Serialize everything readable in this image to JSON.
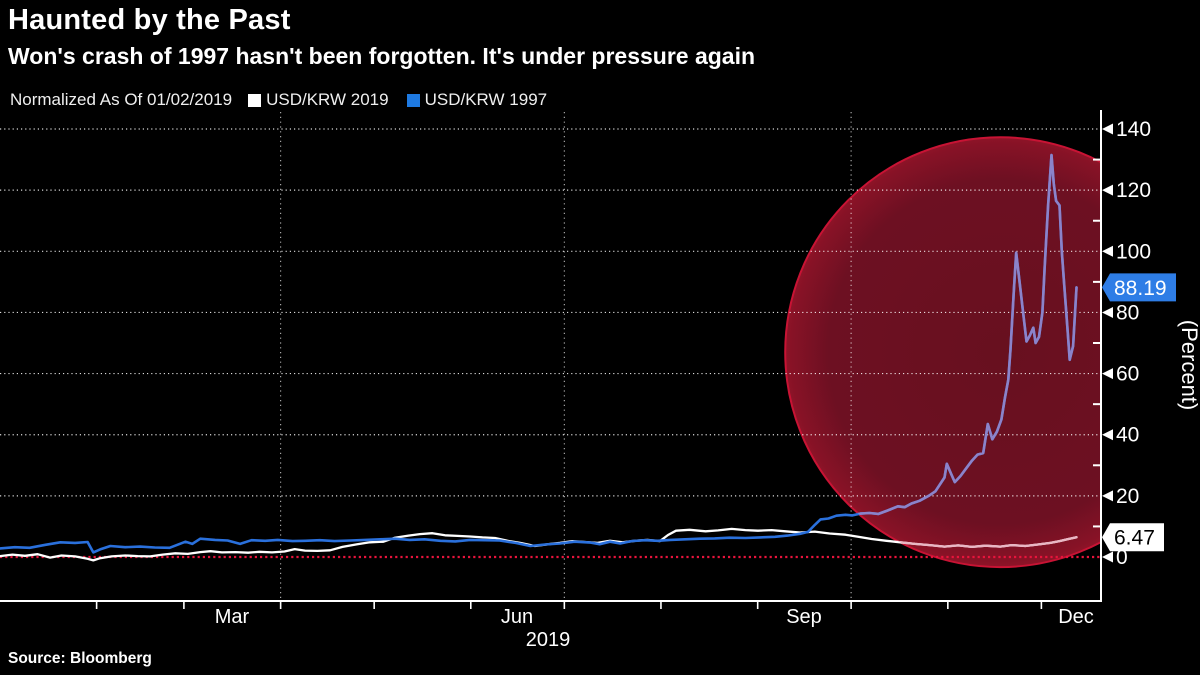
{
  "header": {
    "title": "Haunted by the Past",
    "subtitle": "Won's crash of 1997 hasn't been forgotten. It's under pressure again"
  },
  "legend": {
    "note": "Normalized As Of 01/02/2019",
    "series": [
      {
        "label": "USD/KRW 2019",
        "color": "#FFFFFF"
      },
      {
        "label": "USD/KRW 1997",
        "color": "#1E7AE2"
      }
    ]
  },
  "source": "Source: Bloomberg",
  "badges": [
    {
      "series": "USD/KRW 1997",
      "value": "88.19",
      "bg": "#2E7DE6",
      "fg": "#FFFFFF"
    },
    {
      "series": "USD/KRW 2019",
      "value": "6.47",
      "bg": "#FFFFFF",
      "fg": "#000000"
    }
  ],
  "chart_data": {
    "type": "line",
    "title": "Haunted by the Past",
    "x_axis": {
      "labels": [
        "Mar",
        "Jun",
        "Sep",
        "Dec"
      ],
      "year_label": "2019",
      "range": "Jan 2019 to mid-Dec 2019"
    },
    "y_axis": {
      "title": "(Percent)",
      "ticks": [
        0,
        20,
        40,
        60,
        80,
        100,
        120,
        140
      ],
      "minor_ticks": [
        10,
        30,
        50,
        70,
        90,
        110,
        130
      ],
      "range": [
        0,
        140
      ],
      "side": "right"
    },
    "zero_line": {
      "value": 0,
      "color": "#E8143C",
      "style": "dotted"
    },
    "grid": {
      "horizontal": "dotted-white",
      "vertical_fractions": [
        0.2466,
        0.4959,
        0.7479
      ]
    },
    "highlight_ellipse": {
      "cx_frac": 0.879,
      "cy_pct": 67,
      "rx_frac": 0.189,
      "ry_pct": 70.3,
      "fill": "#6D1022",
      "stroke": "#C81334"
    },
    "series": [
      {
        "name": "USD/KRW 2019",
        "color": "#FFFFFF",
        "tint_in_highlight": "#E9B7C4",
        "last_value": 6.47,
        "points": [
          [
            0.0,
            0.3
          ],
          [
            0.011,
            0.8
          ],
          [
            0.022,
            0.4
          ],
          [
            0.033,
            0.9
          ],
          [
            0.044,
            -0.2
          ],
          [
            0.054,
            0.5
          ],
          [
            0.066,
            0.2
          ],
          [
            0.077,
            -0.6
          ],
          [
            0.082,
            -1.1
          ],
          [
            0.088,
            -0.4
          ],
          [
            0.098,
            0.2
          ],
          [
            0.11,
            0.5
          ],
          [
            0.121,
            0.3
          ],
          [
            0.132,
            0.2
          ],
          [
            0.143,
            0.8
          ],
          [
            0.154,
            1.2
          ],
          [
            0.165,
            1.0
          ],
          [
            0.176,
            1.6
          ],
          [
            0.185,
            1.9
          ],
          [
            0.195,
            1.5
          ],
          [
            0.207,
            1.6
          ],
          [
            0.218,
            1.4
          ],
          [
            0.228,
            1.7
          ],
          [
            0.239,
            1.5
          ],
          [
            0.25,
            1.8
          ],
          [
            0.259,
            2.6
          ],
          [
            0.268,
            2.1
          ],
          [
            0.279,
            2.0
          ],
          [
            0.29,
            2.2
          ],
          [
            0.301,
            3.3
          ],
          [
            0.314,
            4.2
          ],
          [
            0.325,
            4.8
          ],
          [
            0.337,
            5.0
          ],
          [
            0.347,
            6.3
          ],
          [
            0.359,
            7.0
          ],
          [
            0.369,
            7.5
          ],
          [
            0.38,
            7.8
          ],
          [
            0.391,
            7.1
          ],
          [
            0.402,
            6.9
          ],
          [
            0.413,
            6.7
          ],
          [
            0.424,
            6.4
          ],
          [
            0.435,
            6.2
          ],
          [
            0.446,
            5.3
          ],
          [
            0.457,
            4.6
          ],
          [
            0.47,
            3.6
          ],
          [
            0.482,
            4.2
          ],
          [
            0.492,
            4.6
          ],
          [
            0.503,
            5.2
          ],
          [
            0.514,
            4.9
          ],
          [
            0.525,
            4.6
          ],
          [
            0.536,
            5.3
          ],
          [
            0.547,
            4.8
          ],
          [
            0.558,
            5.3
          ],
          [
            0.569,
            5.6
          ],
          [
            0.58,
            5.2
          ],
          [
            0.587,
            7.2
          ],
          [
            0.594,
            8.6
          ],
          [
            0.606,
            8.9
          ],
          [
            0.62,
            8.4
          ],
          [
            0.631,
            8.7
          ],
          [
            0.643,
            9.2
          ],
          [
            0.655,
            8.8
          ],
          [
            0.666,
            8.6
          ],
          [
            0.678,
            8.8
          ],
          [
            0.69,
            8.4
          ],
          [
            0.703,
            8.0
          ],
          [
            0.716,
            8.3
          ],
          [
            0.729,
            7.7
          ],
          [
            0.743,
            7.3
          ],
          [
            0.754,
            6.6
          ],
          [
            0.766,
            5.9
          ],
          [
            0.779,
            5.3
          ],
          [
            0.791,
            4.8
          ],
          [
            0.804,
            4.3
          ],
          [
            0.817,
            3.9
          ],
          [
            0.83,
            3.4
          ],
          [
            0.842,
            3.8
          ],
          [
            0.854,
            3.3
          ],
          [
            0.866,
            3.7
          ],
          [
            0.879,
            3.4
          ],
          [
            0.889,
            3.9
          ],
          [
            0.901,
            3.6
          ],
          [
            0.912,
            4.1
          ],
          [
            0.923,
            4.6
          ],
          [
            0.931,
            5.2
          ],
          [
            0.938,
            5.8
          ],
          [
            0.946,
            6.47
          ]
        ]
      },
      {
        "name": "USD/KRW 1997",
        "color": "#2A70DC",
        "tint_in_highlight": "#8C83C9",
        "last_value": 88.19,
        "points": [
          [
            0.0,
            2.8
          ],
          [
            0.013,
            3.2
          ],
          [
            0.026,
            3.0
          ],
          [
            0.04,
            4.0
          ],
          [
            0.053,
            4.8
          ],
          [
            0.066,
            4.6
          ],
          [
            0.077,
            4.9
          ],
          [
            0.082,
            1.5
          ],
          [
            0.088,
            2.5
          ],
          [
            0.097,
            3.6
          ],
          [
            0.11,
            3.2
          ],
          [
            0.123,
            3.4
          ],
          [
            0.136,
            3.1
          ],
          [
            0.149,
            3.0
          ],
          [
            0.163,
            5.0
          ],
          [
            0.169,
            4.3
          ],
          [
            0.176,
            6.0
          ],
          [
            0.189,
            5.6
          ],
          [
            0.2,
            5.4
          ],
          [
            0.211,
            4.3
          ],
          [
            0.221,
            5.5
          ],
          [
            0.233,
            5.3
          ],
          [
            0.244,
            5.6
          ],
          [
            0.257,
            5.2
          ],
          [
            0.268,
            5.3
          ],
          [
            0.281,
            5.5
          ],
          [
            0.294,
            5.2
          ],
          [
            0.308,
            5.4
          ],
          [
            0.321,
            5.6
          ],
          [
            0.334,
            5.8
          ],
          [
            0.347,
            6.0
          ],
          [
            0.36,
            5.6
          ],
          [
            0.373,
            5.8
          ],
          [
            0.387,
            5.3
          ],
          [
            0.4,
            5.1
          ],
          [
            0.413,
            5.6
          ],
          [
            0.426,
            5.5
          ],
          [
            0.439,
            5.4
          ],
          [
            0.453,
            4.6
          ],
          [
            0.466,
            3.6
          ],
          [
            0.479,
            4.1
          ],
          [
            0.492,
            4.4
          ],
          [
            0.505,
            5.0
          ],
          [
            0.519,
            4.7
          ],
          [
            0.527,
            4.2
          ],
          [
            0.536,
            5.0
          ],
          [
            0.545,
            4.4
          ],
          [
            0.555,
            5.2
          ],
          [
            0.567,
            5.5
          ],
          [
            0.578,
            5.3
          ],
          [
            0.589,
            5.6
          ],
          [
            0.602,
            5.8
          ],
          [
            0.615,
            6.0
          ],
          [
            0.628,
            6.1
          ],
          [
            0.641,
            6.3
          ],
          [
            0.655,
            6.2
          ],
          [
            0.668,
            6.4
          ],
          [
            0.681,
            6.6
          ],
          [
            0.692,
            7.0
          ],
          [
            0.703,
            7.6
          ],
          [
            0.71,
            8.2
          ],
          [
            0.716,
            10.5
          ],
          [
            0.721,
            12.3
          ],
          [
            0.728,
            12.6
          ],
          [
            0.735,
            13.5
          ],
          [
            0.743,
            13.8
          ],
          [
            0.749,
            13.6
          ],
          [
            0.756,
            14.2
          ],
          [
            0.764,
            14.4
          ],
          [
            0.772,
            14.1
          ],
          [
            0.78,
            15.2
          ],
          [
            0.789,
            16.6
          ],
          [
            0.795,
            16.3
          ],
          [
            0.801,
            17.5
          ],
          [
            0.808,
            18.4
          ],
          [
            0.816,
            20.0
          ],
          [
            0.822,
            21.5
          ],
          [
            0.83,
            26.0
          ],
          [
            0.832,
            30.5
          ],
          [
            0.836,
            27.0
          ],
          [
            0.839,
            24.5
          ],
          [
            0.844,
            26.5
          ],
          [
            0.849,
            29.0
          ],
          [
            0.854,
            31.5
          ],
          [
            0.859,
            33.5
          ],
          [
            0.864,
            34.0
          ],
          [
            0.868,
            43.5
          ],
          [
            0.872,
            38.5
          ],
          [
            0.876,
            41.0
          ],
          [
            0.88,
            45.0
          ],
          [
            0.883,
            52.0
          ],
          [
            0.886,
            58.0
          ],
          [
            0.888,
            68.0
          ],
          [
            0.891,
            88.0
          ],
          [
            0.893,
            99.5
          ],
          [
            0.895,
            93.0
          ],
          [
            0.899,
            80.0
          ],
          [
            0.902,
            70.5
          ],
          [
            0.905,
            72.5
          ],
          [
            0.908,
            75.0
          ],
          [
            0.91,
            70.0
          ],
          [
            0.913,
            72.0
          ],
          [
            0.916,
            80.0
          ],
          [
            0.918,
            95.0
          ],
          [
            0.921,
            115.0
          ],
          [
            0.924,
            131.5
          ],
          [
            0.926,
            122.0
          ],
          [
            0.928,
            116.5
          ],
          [
            0.931,
            115.0
          ],
          [
            0.933,
            100.0
          ],
          [
            0.935,
            90.0
          ],
          [
            0.938,
            75.0
          ],
          [
            0.94,
            64.5
          ],
          [
            0.943,
            69.0
          ],
          [
            0.946,
            88.19
          ]
        ]
      }
    ]
  }
}
